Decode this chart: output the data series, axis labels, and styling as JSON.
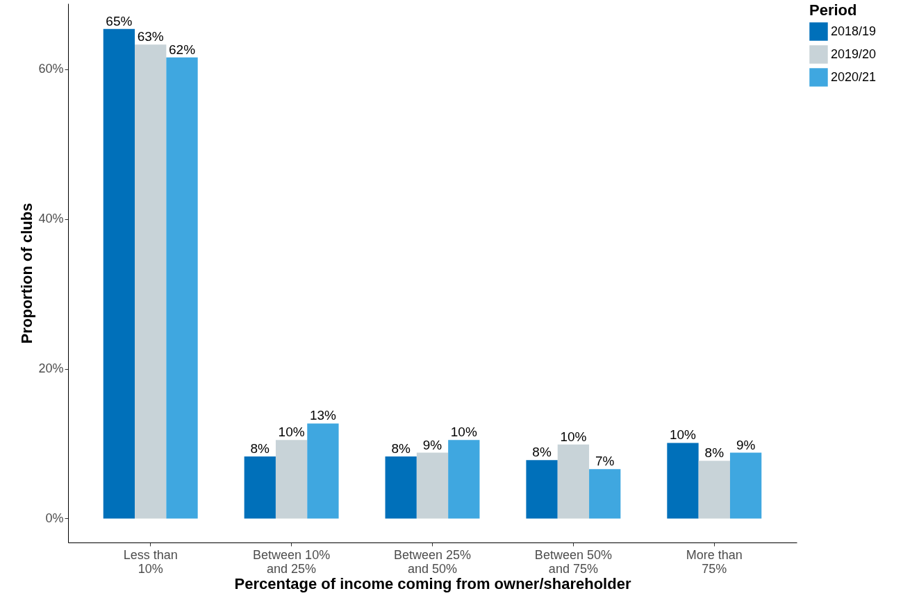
{
  "chart_data": {
    "type": "bar",
    "xlabel": "Percentage of income coming from owner/shareholder",
    "ylabel": "Proportion of clubs",
    "legend_title": "Period",
    "legend": "right",
    "grid": false,
    "categories": [
      "Less than 10%",
      "Between 10% and 25%",
      "Between 25% and 50%",
      "Between 50% and 75%",
      "More than 75%"
    ],
    "series": [
      {
        "name": "2018/19",
        "color": "#0070ba",
        "values": [
          65.4,
          8.3,
          8.3,
          7.8,
          10.1
        ],
        "value_labels": [
          "65%",
          "8%",
          "8%",
          "8%",
          "10%"
        ]
      },
      {
        "name": "2019/20",
        "color": "#c8d3d8",
        "values": [
          63.3,
          10.5,
          8.8,
          9.9,
          7.7
        ],
        "value_labels": [
          "63%",
          "10%",
          "9%",
          "10%",
          "8%"
        ]
      },
      {
        "name": "2020/21",
        "color": "#3fa7e0",
        "values": [
          61.6,
          12.7,
          10.5,
          6.6,
          8.8
        ],
        "value_labels": [
          "62%",
          "13%",
          "10%",
          "7%",
          "9%"
        ]
      }
    ],
    "ylim": [
      -3.2,
      68.8
    ],
    "yticks": [
      {
        "value": 0,
        "label": "0%"
      },
      {
        "value": 20,
        "label": "20%"
      },
      {
        "value": 40,
        "label": "40%"
      },
      {
        "value": 60,
        "label": "60%"
      }
    ]
  }
}
